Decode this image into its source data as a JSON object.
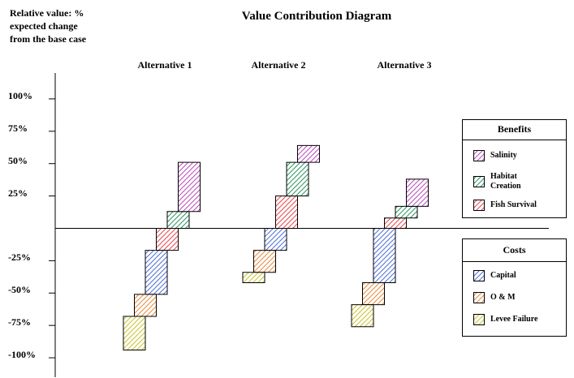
{
  "chart_data": {
    "type": "bar",
    "title": "Value Contribution Diagram",
    "y_label": "Relative value: %\nexpected change\nfrom the base case",
    "categories": [
      "Alternative 1",
      "Alternative 2",
      "Alternative 3"
    ],
    "series": [
      {
        "name": "Fish Survival",
        "color": "#e8474c",
        "values": [
          -17,
          25,
          8
        ]
      },
      {
        "name": "Habitat\nCreation",
        "color": "#2e9460",
        "values": [
          13,
          26,
          9
        ]
      },
      {
        "name": "Salinity",
        "color": "#b94db9",
        "values": [
          38,
          13,
          21
        ]
      },
      {
        "name": "Capital",
        "color": "#4f6fd6",
        "values": [
          -34,
          -17,
          -42
        ]
      },
      {
        "name": "O & M",
        "color": "#e88a3c",
        "values": [
          -17,
          -17,
          -17
        ]
      },
      {
        "name": "Levee Failure",
        "color": "#c9c22a",
        "values": [
          -26,
          -8,
          -17
        ]
      }
    ],
    "legend": {
      "benefits_title": "Benefits",
      "costs_title": "Costs"
    },
    "ylim": [
      -115,
      120
    ],
    "yticks": [
      {
        "value": -100,
        "label": "-100%"
      },
      {
        "value": -75,
        "label": "-75%"
      },
      {
        "value": -50,
        "label": "-50%"
      },
      {
        "value": -25,
        "label": "-25%"
      },
      {
        "value": 25,
        "label": "25%"
      },
      {
        "value": 50,
        "label": "50%"
      },
      {
        "value": 75,
        "label": "75%"
      },
      {
        "value": 100,
        "label": "100%"
      }
    ]
  }
}
